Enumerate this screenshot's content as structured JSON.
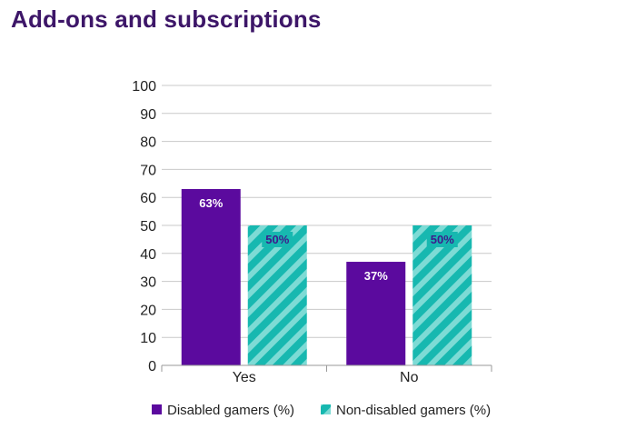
{
  "title": "Add-ons and subscriptions",
  "chart_data": {
    "type": "bar",
    "title": "Add-ons and subscriptions",
    "categories": [
      "Yes",
      "No"
    ],
    "series": [
      {
        "name": "Disabled gamers (%)",
        "values": [
          63,
          37
        ],
        "labels": [
          "63%",
          "37%"
        ],
        "color": "#5b0a9e",
        "pattern": "solid"
      },
      {
        "name": "Non-disabled gamers (%)",
        "values": [
          50,
          50
        ],
        "labels": [
          "50%",
          "50%"
        ],
        "color": "#17b8b0",
        "pattern": "diagonal-stripes"
      }
    ],
    "ylim": [
      0,
      100
    ],
    "yticks": [
      0,
      10,
      20,
      30,
      40,
      50,
      60,
      70,
      80,
      90,
      100
    ],
    "xlabel": "",
    "ylabel": "",
    "grid": true,
    "legend": "bottom"
  }
}
